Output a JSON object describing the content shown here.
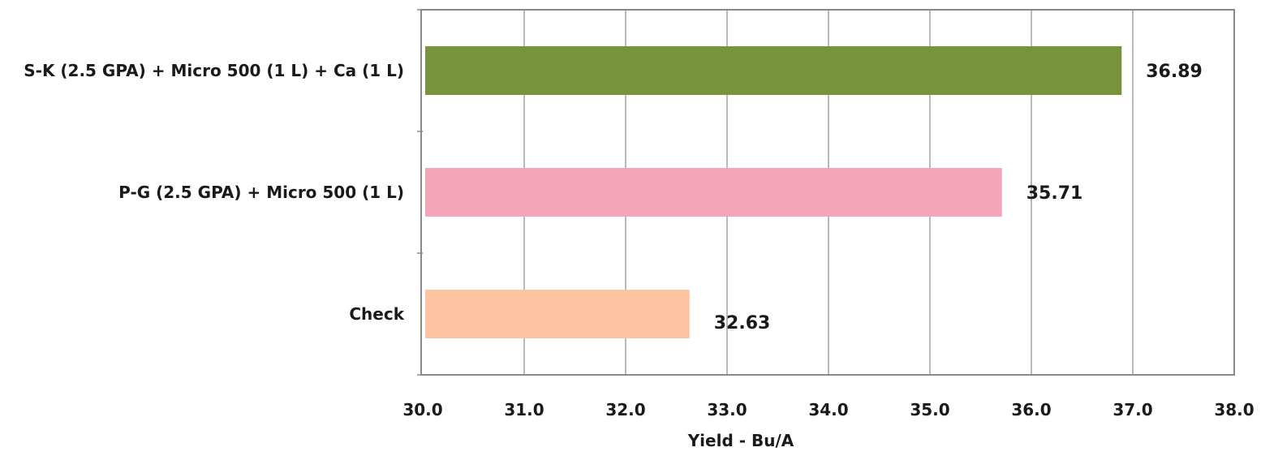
{
  "chart_data": {
    "type": "bar",
    "orientation": "horizontal",
    "categories": [
      "S-K (2.5 GPA) + Micro 500 (1 L) + Ca (1 L)",
      "P-G (2.5 GPA) + Micro 500 (1 L)",
      "Check"
    ],
    "values": [
      36.89,
      35.71,
      32.63
    ],
    "data_labels": [
      "36.89",
      "35.71",
      "32.63"
    ],
    "bar_colors": [
      "#77933c",
      "#f4a6b8",
      "#fcc4a0"
    ],
    "xlabel": "Yield - Bu/A",
    "ylabel": "",
    "xlim": [
      30.0,
      38.0
    ],
    "xticks": [
      30.0,
      31.0,
      32.0,
      33.0,
      34.0,
      35.0,
      36.0,
      37.0,
      38.0
    ],
    "xtick_labels": [
      "30.0",
      "31.0",
      "32.0",
      "33.0",
      "34.0",
      "35.0",
      "36.0",
      "37.0",
      "38.0"
    ],
    "grid": "vertical",
    "legend": "none"
  }
}
